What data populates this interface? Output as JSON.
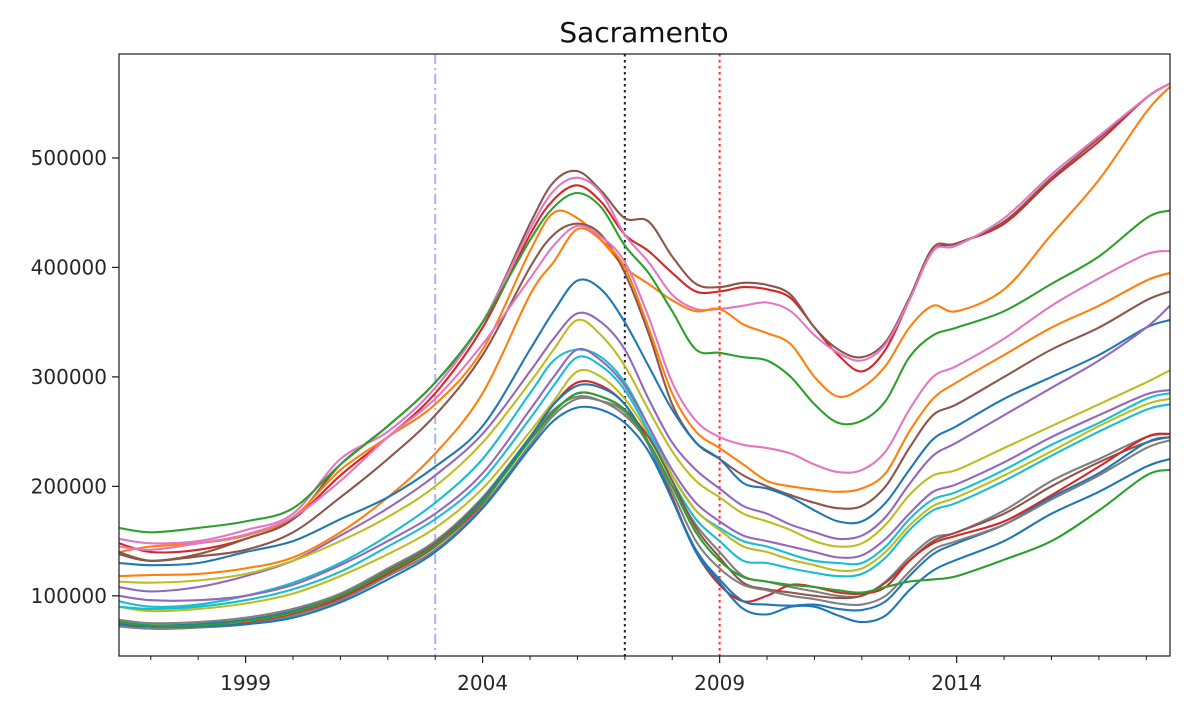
{
  "chart_data": {
    "type": "line",
    "title": "Sacramento",
    "xlabel": "",
    "ylabel": "",
    "xlim": [
      1996.33,
      2018.5
    ],
    "ylim": [
      45000,
      595000
    ],
    "x_ticks": [
      1999,
      2004,
      2009,
      2014
    ],
    "y_ticks": [
      100000,
      200000,
      300000,
      400000,
      500000
    ],
    "grid": false,
    "legend": "none",
    "vlines": [
      {
        "x": 2003.0,
        "color": "#aab4f5",
        "style": "dash-dot"
      },
      {
        "x": 2007.0,
        "color": "#222222",
        "style": "dotted"
      },
      {
        "x": 2009.0,
        "color": "#ff2a2a",
        "style": "dotted"
      }
    ],
    "x": [
      1996.33,
      1997.0,
      1998.0,
      1999.0,
      2000.0,
      2001.0,
      2002.0,
      2003.0,
      2004.0,
      2005.0,
      2005.5,
      2006.0,
      2006.5,
      2007.0,
      2007.5,
      2008.0,
      2008.5,
      2009.0,
      2009.5,
      2010.0,
      2010.5,
      2011.0,
      2011.5,
      2012.0,
      2012.5,
      2013.0,
      2013.5,
      2014.0,
      2015.0,
      2016.0,
      2017.0,
      2018.0,
      2018.5
    ],
    "series": [
      {
        "color": "#d62728",
        "values": [
          148000,
          140000,
          142000,
          152000,
          170000,
          210000,
          245000,
          285000,
          345000,
          430000,
          462000,
          475000,
          460000,
          430000,
          415000,
          395000,
          378000,
          378000,
          382000,
          380000,
          372000,
          345000,
          320000,
          305000,
          325000,
          370000,
          415000,
          422000,
          440000,
          480000,
          515000,
          555000,
          568000
        ]
      },
      {
        "color": "#8c564b",
        "values": [
          138000,
          132000,
          138000,
          152000,
          170000,
          220000,
          255000,
          295000,
          350000,
          440000,
          478000,
          488000,
          470000,
          445000,
          442000,
          410000,
          385000,
          382000,
          386000,
          384000,
          375000,
          345000,
          325000,
          318000,
          332000,
          372000,
          418000,
          422000,
          442000,
          482000,
          518000,
          555000,
          568000
        ]
      },
      {
        "color": "#e377c2",
        "values": [
          152000,
          148000,
          150000,
          160000,
          175000,
          225000,
          250000,
          290000,
          350000,
          435000,
          470000,
          482000,
          468000,
          430000,
          405000,
          375000,
          362000,
          362000,
          365000,
          368000,
          360000,
          338000,
          322000,
          315000,
          330000,
          370000,
          415000,
          420000,
          445000,
          485000,
          520000,
          555000,
          568000
        ]
      },
      {
        "color": "#ff7f0e",
        "values": [
          140000,
          145000,
          148000,
          155000,
          172000,
          215000,
          245000,
          275000,
          325000,
          415000,
          450000,
          445000,
          425000,
          400000,
          385000,
          370000,
          360000,
          362000,
          348000,
          340000,
          330000,
          300000,
          282000,
          290000,
          310000,
          345000,
          365000,
          360000,
          380000,
          430000,
          480000,
          542000,
          565000
        ]
      },
      {
        "color": "#2ca02c",
        "values": [
          162000,
          158000,
          162000,
          168000,
          180000,
          220000,
          255000,
          295000,
          350000,
          425000,
          455000,
          468000,
          455000,
          420000,
          395000,
          360000,
          325000,
          322000,
          318000,
          315000,
          300000,
          275000,
          258000,
          260000,
          278000,
          318000,
          338000,
          345000,
          360000,
          385000,
          410000,
          445000,
          452000
        ]
      },
      {
        "color": "#8c564b",
        "values": [
          140000,
          132000,
          136000,
          142000,
          158000,
          190000,
          225000,
          265000,
          320000,
          400000,
          430000,
          440000,
          430000,
          395000,
          340000,
          275000,
          240000,
          225000,
          210000,
          200000,
          192000,
          185000,
          180000,
          182000,
          200000,
          235000,
          265000,
          275000,
          300000,
          325000,
          345000,
          370000,
          378000
        ]
      },
      {
        "color": "#ff7f0e",
        "values": [
          118000,
          119000,
          120000,
          125000,
          135000,
          158000,
          190000,
          230000,
          285000,
          375000,
          405000,
          435000,
          425000,
          400000,
          345000,
          285000,
          250000,
          235000,
          220000,
          205000,
          200000,
          197000,
          195000,
          198000,
          212000,
          250000,
          280000,
          295000,
          320000,
          345000,
          365000,
          388000,
          395000
        ]
      },
      {
        "color": "#e377c2",
        "values": [
          145000,
          142000,
          148000,
          156000,
          172000,
          205000,
          245000,
          280000,
          330000,
          390000,
          420000,
          438000,
          428000,
          405000,
          355000,
          295000,
          260000,
          245000,
          238000,
          235000,
          230000,
          220000,
          213000,
          215000,
          232000,
          270000,
          300000,
          310000,
          335000,
          365000,
          390000,
          412000,
          415000
        ]
      },
      {
        "color": "#1f77b4",
        "values": [
          130000,
          128000,
          130000,
          140000,
          150000,
          170000,
          190000,
          218000,
          255000,
          325000,
          360000,
          388000,
          380000,
          350000,
          310000,
          270000,
          240000,
          225000,
          203000,
          198000,
          190000,
          178000,
          168000,
          168000,
          185000,
          215000,
          243000,
          255000,
          280000,
          300000,
          320000,
          345000,
          352000
        ]
      },
      {
        "color": "#9467bd",
        "values": [
          108000,
          104000,
          108000,
          118000,
          132000,
          155000,
          180000,
          210000,
          248000,
          305000,
          335000,
          358000,
          350000,
          325000,
          280000,
          240000,
          215000,
          198000,
          182000,
          175000,
          165000,
          158000,
          152000,
          155000,
          172000,
          202000,
          228000,
          240000,
          265000,
          290000,
          315000,
          345000,
          365000
        ]
      },
      {
        "color": "#bcbd22",
        "values": [
          113000,
          112000,
          114000,
          120000,
          132000,
          150000,
          172000,
          200000,
          240000,
          295000,
          325000,
          352000,
          338000,
          310000,
          270000,
          232000,
          205000,
          190000,
          175000,
          168000,
          160000,
          150000,
          145000,
          148000,
          165000,
          192000,
          210000,
          215000,
          235000,
          255000,
          275000,
          295000,
          306000
        ]
      },
      {
        "color": "#17becf",
        "values": [
          95000,
          90000,
          92000,
          100000,
          112000,
          130000,
          155000,
          185000,
          225000,
          285000,
          315000,
          325000,
          318000,
          295000,
          255000,
          210000,
          178000,
          162000,
          150000,
          145000,
          138000,
          132000,
          130000,
          130000,
          145000,
          170000,
          188000,
          195000,
          215000,
          238000,
          258000,
          280000,
          285000
        ]
      },
      {
        "color": "#9467bd",
        "values": [
          100000,
          96000,
          96000,
          100000,
          110000,
          128000,
          150000,
          175000,
          212000,
          270000,
          300000,
          325000,
          315000,
          292000,
          255000,
          215000,
          185000,
          168000,
          155000,
          150000,
          145000,
          140000,
          135000,
          137000,
          152000,
          175000,
          195000,
          202000,
          222000,
          245000,
          265000,
          284000,
          288000
        ]
      },
      {
        "color": "#bcbd22",
        "values": [
          90000,
          86000,
          88000,
          93000,
          102000,
          118000,
          138000,
          162000,
          198000,
          250000,
          278000,
          305000,
          300000,
          280000,
          248000,
          210000,
          178000,
          160000,
          145000,
          140000,
          133000,
          128000,
          123000,
          125000,
          140000,
          164000,
          182000,
          190000,
          210000,
          232000,
          255000,
          275000,
          280000
        ]
      },
      {
        "color": "#17becf",
        "values": [
          90000,
          88000,
          90000,
          96000,
          106000,
          122000,
          145000,
          170000,
          206000,
          262000,
          292000,
          318000,
          310000,
          288000,
          250000,
          205000,
          170000,
          150000,
          132000,
          130000,
          125000,
          121000,
          118000,
          120000,
          135000,
          160000,
          178000,
          185000,
          205000,
          228000,
          250000,
          270000,
          275000
        ]
      },
      {
        "color": "#7f7f7f",
        "values": [
          78000,
          75000,
          76000,
          80000,
          88000,
          102000,
          125000,
          150000,
          190000,
          245000,
          270000,
          282000,
          278000,
          265000,
          240000,
          200000,
          165000,
          140000,
          118000,
          113000,
          108000,
          104000,
          100000,
          100000,
          113000,
          135000,
          153000,
          158000,
          178000,
          205000,
          225000,
          245000,
          248000
        ]
      },
      {
        "color": "#8c564b",
        "values": [
          76000,
          73000,
          74000,
          78000,
          86000,
          100000,
          123000,
          148000,
          188000,
          242000,
          268000,
          285000,
          282000,
          270000,
          245000,
          205000,
          162000,
          135000,
          112000,
          106000,
          103000,
          100000,
          98000,
          100000,
          112000,
          132000,
          150000,
          158000,
          175000,
          200000,
          222000,
          240000,
          245000
        ]
      },
      {
        "color": "#d62728",
        "values": [
          74000,
          70000,
          71000,
          75000,
          83000,
          98000,
          120000,
          145000,
          185000,
          245000,
          275000,
          295000,
          292000,
          275000,
          240000,
          190000,
          140000,
          110000,
          95000,
          100000,
          110000,
          108000,
          103000,
          102000,
          108000,
          132000,
          148000,
          155000,
          168000,
          192000,
          218000,
          245000,
          248000
        ]
      },
      {
        "color": "#1f77b4",
        "values": [
          76000,
          73000,
          74000,
          78000,
          86000,
          100000,
          122000,
          146000,
          188000,
          245000,
          275000,
          292000,
          290000,
          275000,
          238000,
          188000,
          142000,
          115000,
          95000,
          92000,
          91000,
          92000,
          88000,
          87000,
          95000,
          118000,
          138000,
          148000,
          165000,
          190000,
          212000,
          240000,
          245000
        ]
      },
      {
        "color": "#7f7f7f",
        "values": [
          72000,
          70000,
          71000,
          74000,
          82000,
          96000,
          118000,
          142000,
          182000,
          238000,
          265000,
          280000,
          278000,
          268000,
          238000,
          195000,
          150000,
          125000,
          110000,
          105000,
          100000,
          97000,
          93000,
          92000,
          100000,
          122000,
          142000,
          150000,
          165000,
          188000,
          210000,
          235000,
          242000
        ]
      },
      {
        "color": "#1f77b4",
        "values": [
          74000,
          72000,
          72000,
          74000,
          80000,
          94000,
          115000,
          140000,
          180000,
          235000,
          260000,
          272000,
          270000,
          258000,
          232000,
          188000,
          140000,
          112000,
          88000,
          83000,
          90000,
          90000,
          82000,
          76000,
          82000,
          105000,
          123000,
          133000,
          150000,
          175000,
          195000,
          218000,
          225000
        ]
      },
      {
        "color": "#2ca02c",
        "values": [
          76000,
          73000,
          73000,
          77000,
          85000,
          100000,
          122000,
          146000,
          186000,
          242000,
          268000,
          285000,
          282000,
          270000,
          240000,
          200000,
          158000,
          132000,
          117000,
          113000,
          110000,
          108000,
          105000,
          103000,
          108000,
          113000,
          115000,
          118000,
          133000,
          150000,
          178000,
          210000,
          215000
        ]
      }
    ]
  }
}
